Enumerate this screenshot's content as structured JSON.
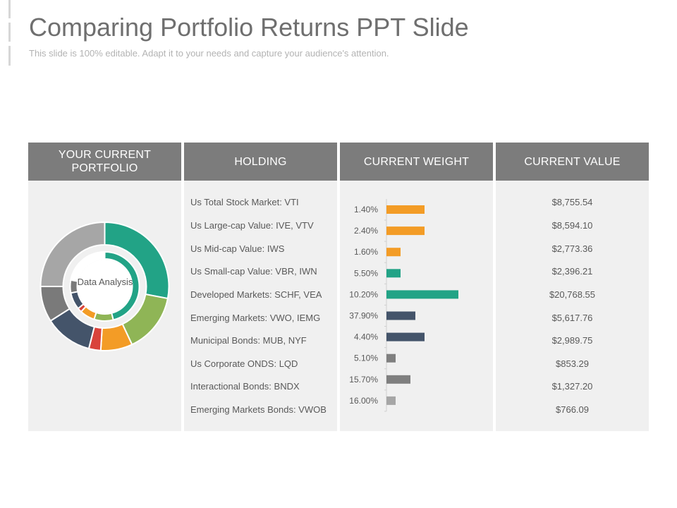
{
  "slide": {
    "title": "Comparing Portfolio Returns PPT Slide",
    "subtitle": "This slide is 100% editable. Adapt it to your needs and capture your audience's attention."
  },
  "table": {
    "headers": [
      "YOUR CURRENT PORTFOLIO",
      "HOLDING",
      "CURRENT WEIGHT",
      "CURRENT VALUE"
    ],
    "donut_label": "Data Analysis",
    "rows": [
      {
        "holding": "Us Total Stock Market: VTI",
        "weight": "1.40%",
        "value": "$8,755.54"
      },
      {
        "holding": "Us Large-cap Value: IVE, VTV",
        "weight": "2.40%",
        "value": "$8,594.10"
      },
      {
        "holding": "Us Mid-cap Value: IWS",
        "weight": "1.60%",
        "value": "$2,773.36"
      },
      {
        "holding": "Us Small-cap Value: VBR, IWN",
        "weight": "5.50%",
        "value": "$2,396.21"
      },
      {
        "holding": "Developed Markets: SCHF, VEA",
        "weight": "10.20%",
        "value": "$20,768.55"
      },
      {
        "holding": "Emerging Markets: VWO, IEMG",
        "weight": "37.90%",
        "value": "$5,617.76"
      },
      {
        "holding": "Municipal Bonds: MUB, NYF",
        "weight": "4.40%",
        "value": "$2,989.75"
      },
      {
        "holding": "Us Corporate ONDS: LQD",
        "weight": "5.10%",
        "value": "$853.29"
      },
      {
        "holding": "Interactional Bonds: BNDX",
        "weight": "15.70%",
        "value": "$1,327.20"
      },
      {
        "holding": "Emerging Markets Bonds: VWOB",
        "weight": "16.00%",
        "value": "$766.09"
      }
    ]
  },
  "chart_data": [
    {
      "type": "bar",
      "orientation": "horizontal",
      "categories": [
        "1.40%",
        "2.40%",
        "1.60%",
        "5.50%",
        "10.20%",
        "37.90%",
        "4.40%",
        "5.10%",
        "15.70%",
        "16.00%"
      ],
      "values": [
        54,
        54,
        20,
        20,
        102,
        41,
        54,
        13,
        34,
        13
      ],
      "xlim": [
        0,
        110
      ],
      "colors": [
        "#f39c26",
        "#f39c26",
        "#f39c26",
        "#22a386",
        "#22a386",
        "#44546a",
        "#44546a",
        "#7f7f7f",
        "#7f7f7f",
        "#a6a6a6"
      ],
      "grid": false
    },
    {
      "type": "pie",
      "style": "double donut",
      "outer_ring": [
        {
          "value": 28,
          "color": "#22a386"
        },
        {
          "value": 15,
          "color": "#8fb556"
        },
        {
          "value": 8,
          "color": "#f39c26"
        },
        {
          "value": 3,
          "color": "#d9433b"
        },
        {
          "value": 12,
          "color": "#44546a"
        },
        {
          "value": 9,
          "color": "#7a7a7a"
        },
        {
          "value": 25,
          "color": "#a6a6a6"
        }
      ],
      "inner_ring": [
        {
          "value": 46,
          "color": "#22a386"
        },
        {
          "value": 9,
          "color": "#8fb556"
        },
        {
          "value": 7,
          "color": "#f39c26"
        },
        {
          "value": 2,
          "color": "#d9433b"
        },
        {
          "value": 8,
          "color": "#44546a"
        },
        {
          "value": 6,
          "color": "#7a7a7a"
        },
        {
          "value": 22,
          "color": "#ffffff"
        }
      ]
    }
  ]
}
